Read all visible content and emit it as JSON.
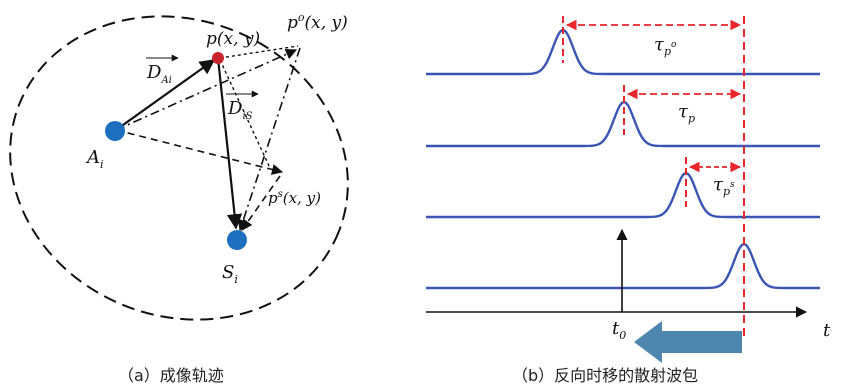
{
  "panel_a": {
    "caption": "（a）成像轨迹",
    "labels": {
      "p": "p(x, y)",
      "po_base": "p",
      "po_sup": "o",
      "po_rest": "(x, y)",
      "ps_base": "p",
      "ps_sup": "s",
      "ps_rest": "(x, y)",
      "A_base": "A",
      "A_sub": "i",
      "S_base": "S",
      "S_sub": "i",
      "DAi_base": "D",
      "DAi_sub": "Ai",
      "DiS_base": "D",
      "DiS_sub": "iS"
    },
    "colors": {
      "point_p": "#c8242b",
      "point_A": "#1f6fc0",
      "point_S": "#1f6fc0"
    }
  },
  "panel_b": {
    "caption": "（b）反向时移的散射波包",
    "labels": {
      "tau_po_base": "τ",
      "tau_po_sub": "p",
      "tau_po_sup": "o",
      "tau_p_base": "τ",
      "tau_p_sub": "p",
      "tau_ps_base": "τ",
      "tau_ps_sub": "p",
      "tau_ps_sup": "s",
      "t_axis": "t",
      "t0_base": "t",
      "t0_sub": "0"
    },
    "colors": {
      "trace": "#3a55b4",
      "marker": "#e8262b",
      "arrow": "#4f86b0"
    }
  }
}
